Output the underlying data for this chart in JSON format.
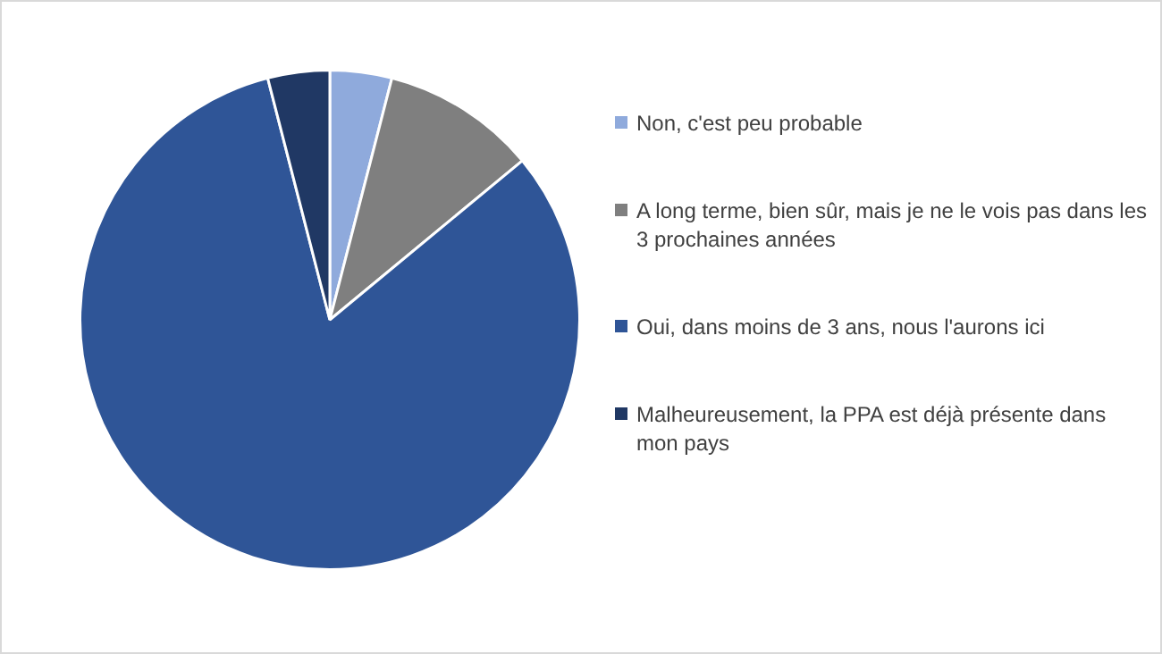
{
  "chart_data": {
    "type": "pie",
    "categories": [
      "Non, c'est peu probable",
      "A long terme, bien sûr, mais je ne le vois pas dans les 3 prochaines années",
      "Oui, dans moins de 3 ans, nous l'aurons ici",
      "Malheureusement, la PPA est déjà présente dans mon pays"
    ],
    "values": [
      4,
      10,
      82,
      4
    ],
    "colors": [
      "#8faadc",
      "#7f7f7f",
      "#2f5597",
      "#203864"
    ],
    "legend": "right"
  }
}
